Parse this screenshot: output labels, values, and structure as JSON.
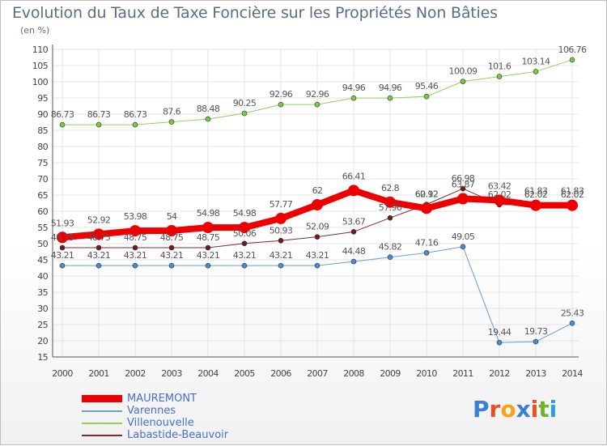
{
  "header": {
    "title": "Evolution du Taux de Taxe Foncière sur les Propriétés Non Bâties",
    "subtitle": "(en %)"
  },
  "logo": {
    "letters": [
      "P",
      "r",
      "o",
      "x",
      "i",
      "t",
      "i"
    ],
    "colors": [
      "#3b7fd0",
      "#e8501f",
      "#f2a516",
      "#3b7fd0",
      "#e8501f",
      "#6bb533",
      "#2f9fd8"
    ]
  },
  "chart_data": {
    "type": "line",
    "title": "Evolution du Taux de Taxe Foncière sur les Propriétés Non Bâties",
    "subtitle": "(en %)",
    "ylim": [
      15,
      110
    ],
    "yticks": [
      15,
      20,
      25,
      30,
      35,
      40,
      45,
      50,
      55,
      60,
      65,
      70,
      75,
      80,
      85,
      90,
      95,
      100,
      105,
      110
    ],
    "grid": true,
    "legend_position": "bottom-left",
    "categories": [
      "2000",
      "2001",
      "2002",
      "2003",
      "2004",
      "2005",
      "2006",
      "2007",
      "2008",
      "2009",
      "2010",
      "2011",
      "2012",
      "2013",
      "2014"
    ],
    "series": [
      {
        "name": "Villenouvelle",
        "color": "#8fd15a",
        "point_color": "#7bc843",
        "width": 1,
        "radius": 3,
        "values": [
          86.73,
          86.73,
          86.73,
          87.6,
          88.48,
          90.25,
          92.96,
          92.96,
          94.96,
          94.96,
          95.46,
          100.09,
          101.6,
          103.14,
          106.76
        ],
        "labels": [
          "86.73",
          "86.73",
          "86.73",
          "87.6",
          "88.48",
          "90.25",
          "92.96",
          "92.96",
          "94.96",
          "94.96",
          "95.46",
          "100.09",
          "101.6",
          "103.14",
          "106.76"
        ]
      },
      {
        "name": "Varennes",
        "color": "#6a9fd0",
        "point_color": "#4a8ccd",
        "width": 1,
        "radius": 3,
        "values": [
          43.21,
          43.21,
          43.21,
          43.21,
          43.21,
          43.21,
          43.21,
          43.21,
          44.48,
          45.82,
          47.16,
          49.05,
          19.44,
          19.73,
          25.43
        ],
        "labels": [
          "43.21",
          "43.21",
          "43.21",
          "43.21",
          "43.21",
          "43.21",
          "43.21",
          "43.21",
          "44.48",
          "45.82",
          "47.16",
          "49.05",
          "19.44",
          "19.73",
          "25.43"
        ]
      },
      {
        "name": "Labastide-Beauvoir",
        "color": "#7a2e2e",
        "point_color": "#6a1e1e",
        "width": 1,
        "radius": 3,
        "values": [
          48.75,
          48.75,
          48.75,
          48.75,
          48.75,
          50.06,
          50.93,
          52.09,
          53.67,
          57.96,
          62.12,
          66.98,
          62.02,
          62.02,
          62.02
        ],
        "labels": [
          "48.75",
          "48.75",
          "48.75",
          "48.75",
          "48.75",
          "50.06",
          "50.93",
          "52.09",
          "53.67",
          "57.96",
          "62.12",
          "66.98",
          "62.02",
          "62.02",
          "62.02"
        ]
      },
      {
        "name": "MAUREMONT",
        "color": "#ee0000",
        "point_color": "#ee0000",
        "width": 8,
        "radius": 7,
        "values": [
          51.93,
          52.92,
          53.98,
          54,
          54.98,
          54.98,
          57.77,
          62,
          66.41,
          62.8,
          60.92,
          63.87,
          63.42,
          61.83,
          61.83
        ],
        "labels": [
          "51.93",
          "52.92",
          "53.98",
          "54",
          "54.98",
          "54.98",
          "57.77",
          "62",
          "66.41",
          "62.8",
          "60.92",
          "63.87",
          "63.42",
          "61.83",
          "61.83"
        ]
      }
    ],
    "legend": [
      "MAUREMONT",
      "Varennes",
      "Villenouvelle",
      "Labastide-Beauvoir"
    ]
  }
}
